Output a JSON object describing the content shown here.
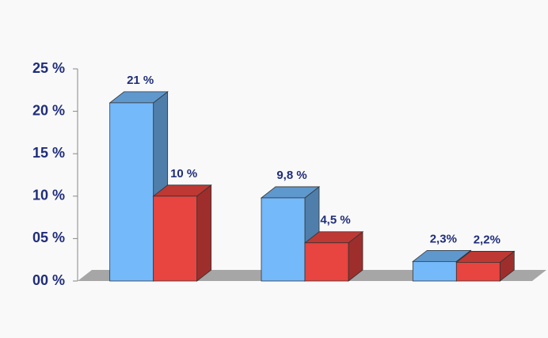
{
  "chart_data": {
    "type": "bar3d",
    "categories": [
      null,
      null,
      null
    ],
    "series": [
      {
        "color": "#74b9fa",
        "values": [
          21,
          9.8,
          2.3
        ],
        "value_labels": [
          "21 %",
          "9,8 %",
          "2,3%"
        ]
      },
      {
        "color": "#e84440",
        "values": [
          10,
          4.5,
          2.2
        ],
        "value_labels": [
          "10 %",
          "4,5 %",
          "2,2%"
        ]
      }
    ],
    "ylim": [
      0,
      25
    ],
    "yticks": [
      {
        "value": 0,
        "label": "00 %"
      },
      {
        "value": 5,
        "label": "05 %"
      },
      {
        "value": 10,
        "label": "10 %"
      },
      {
        "value": 15,
        "label": "15 %"
      },
      {
        "value": 20,
        "label": "20 %"
      },
      {
        "value": 25,
        "label": "25 %"
      }
    ]
  }
}
